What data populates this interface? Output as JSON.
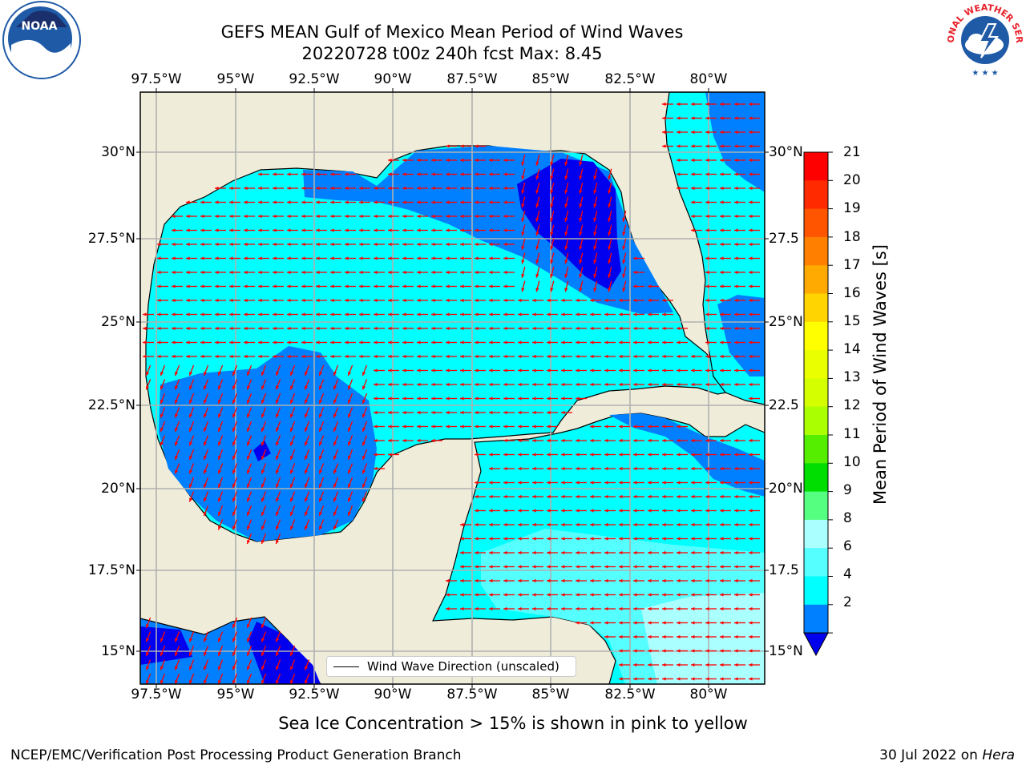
{
  "title": {
    "line1": "GEFS MEAN Gulf of Mexico Mean Period of Wind Waves",
    "line2": "20220728 t00z 240h fcst   Max: 8.45"
  },
  "axes": {
    "lon_ticks": [
      "97.5°W",
      "95°W",
      "92.5°W",
      "90°W",
      "87.5°W",
      "85°W",
      "82.5°W",
      "80°W"
    ],
    "lat_ticks_left": [
      "30°N",
      "27.5°N",
      "25°N",
      "22.5°N",
      "20°N",
      "17.5°N",
      "15°N"
    ],
    "lat_ticks_right": [
      "30°N",
      "27.5",
      "25°N",
      "22.5",
      "20°N",
      "17.5",
      "15°N"
    ]
  },
  "colorbar": {
    "label": "Mean Period of Wind Waves [s]",
    "ticks": [
      "21",
      "20",
      "19",
      "18",
      "17",
      "16",
      "15",
      "14",
      "13",
      "12",
      "11",
      "10",
      "9",
      "8",
      "6",
      "4",
      "2"
    ],
    "colors": [
      "#ff0000",
      "#ff2a00",
      "#ff5500",
      "#ff8000",
      "#ffaa00",
      "#ffd400",
      "#ffff00",
      "#eaff00",
      "#d4ff00",
      "#aaff00",
      "#55ee00",
      "#00dd00",
      "#55ff80",
      "#aaffff",
      "#55ffff",
      "#00ffff",
      "#0080ff"
    ],
    "under_color": "#0000ee"
  },
  "legend": {
    "label": "Wind Wave Direction (unscaled)"
  },
  "map_colors": {
    "land": "#efedda",
    "grid": "#b0b0b0",
    "arrow": "#ff0000"
  },
  "notes": {
    "ice": "Sea Ice Concentration > 15% is shown in pink to yellow"
  },
  "footer": {
    "left": "NCEP/EMC/Verification Post Processing Product Generation Branch",
    "date": "30 Jul 2022 on",
    "machine": "Hera"
  },
  "logos": {
    "noaa_text": "NOAA",
    "nws_text": "NATIONAL WEATHER SERVICE"
  }
}
